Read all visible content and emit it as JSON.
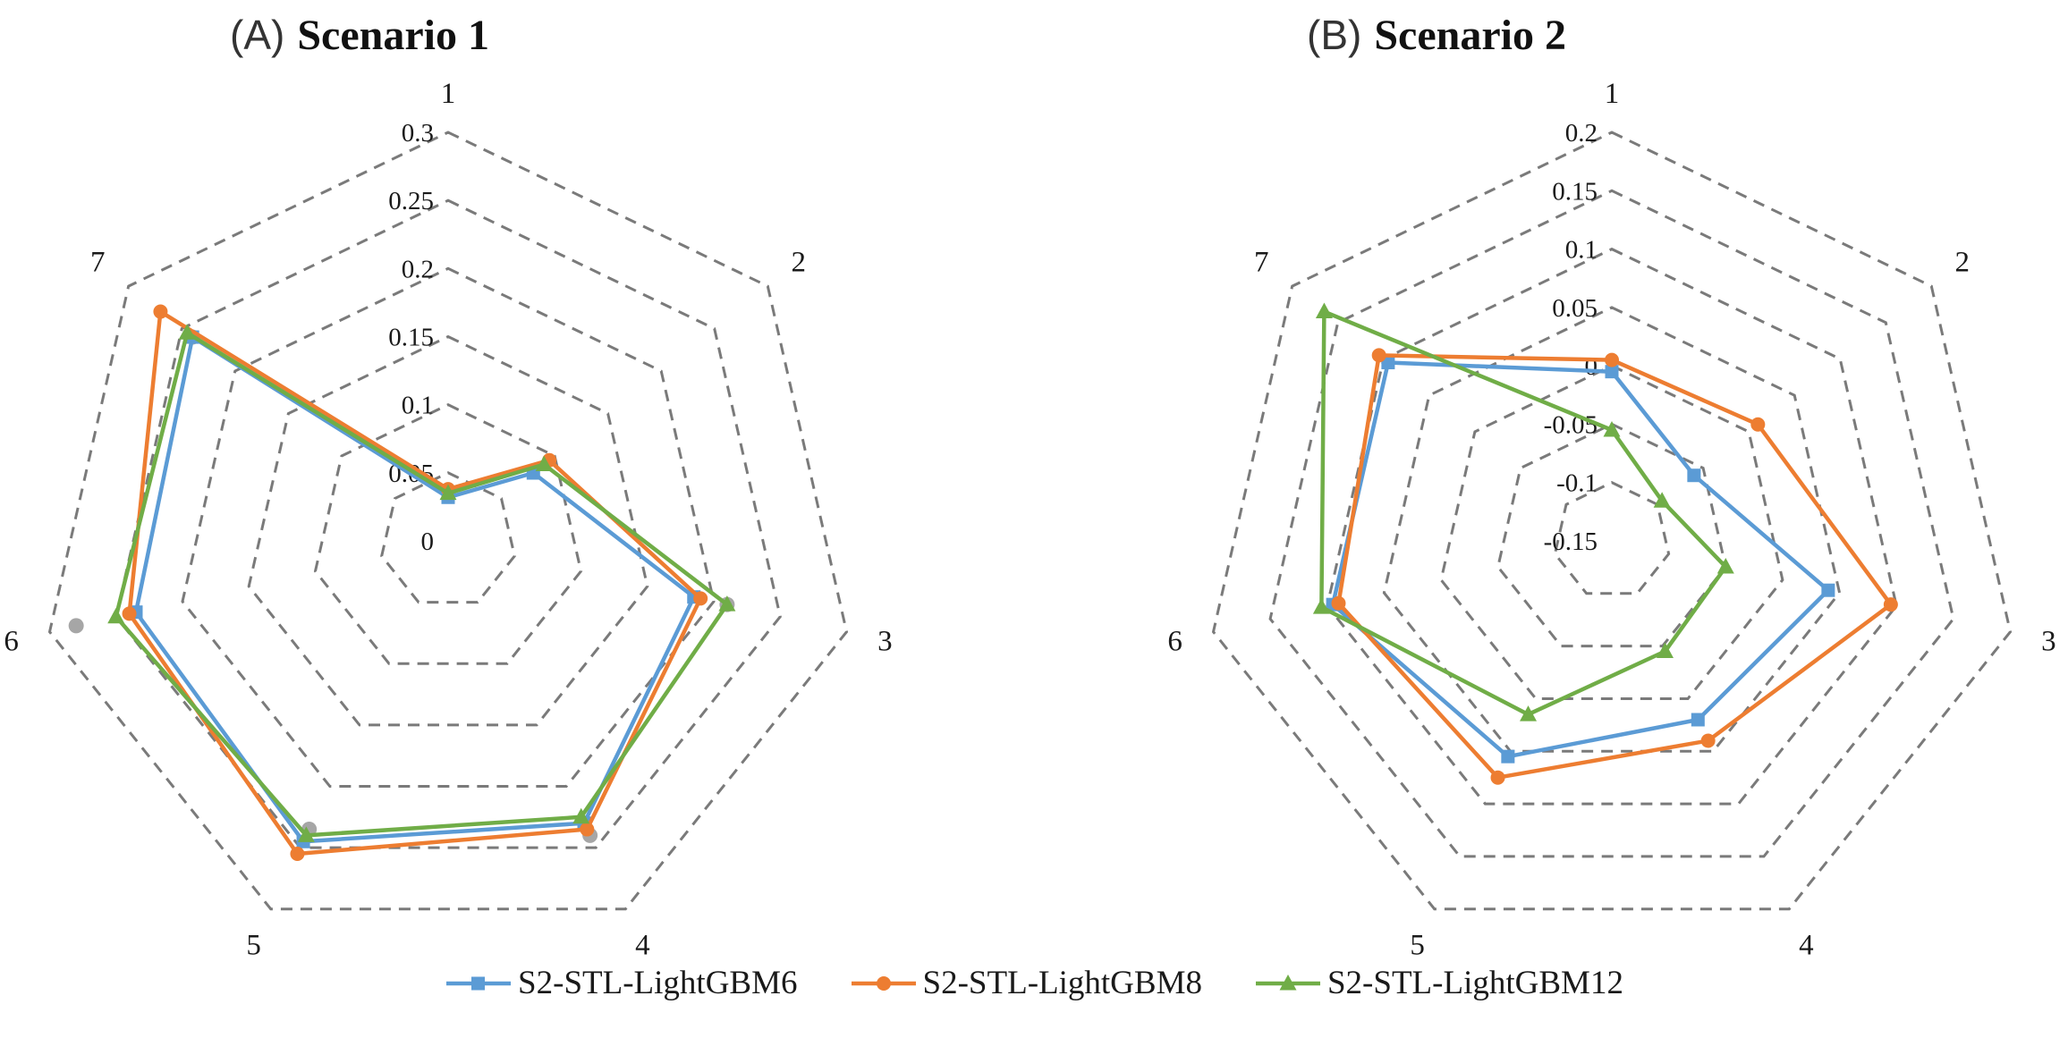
{
  "figure": {
    "background": "#ffffff"
  },
  "style": {
    "grid_color": "#7a7a7a",
    "text_color": "#1a1a1a",
    "extra_marker_color": "#A6A6A6"
  },
  "legend": {
    "items": [
      {
        "label": "S2-STL-LightGBM6",
        "color": "#5B9BD5",
        "marker": "square"
      },
      {
        "label": "S2-STL-LightGBM8",
        "color": "#ED7D31",
        "marker": "circle"
      },
      {
        "label": "S2-STL-LightGBM12",
        "color": "#70AD47",
        "marker": "triangle"
      }
    ]
  },
  "chart_data": [
    {
      "type": "radar",
      "panel_label": "(A)",
      "title": "Scenario 1",
      "categories": [
        "1",
        "2",
        "3",
        "4",
        "5",
        "6",
        "7"
      ],
      "rmin": 0,
      "rmax": 0.3,
      "tick_values": [
        0,
        0.05,
        0.1,
        0.15,
        0.2,
        0.25,
        0.3
      ],
      "tick_labels": [
        "0",
        "0.05",
        "0.1",
        "0.15",
        "0.2",
        "0.25",
        "0.3"
      ],
      "grid": true,
      "legend_position": "bottom",
      "series": [
        {
          "name": "S2-STL-LightGBM6",
          "color": "#5B9BD5",
          "marker": "square",
          "values": [
            0.032,
            0.08,
            0.185,
            0.23,
            0.245,
            0.235,
            0.24
          ]
        },
        {
          "name": "S2-STL-LightGBM8",
          "color": "#ED7D31",
          "marker": "circle",
          "values": [
            0.038,
            0.095,
            0.19,
            0.235,
            0.255,
            0.24,
            0.27
          ]
        },
        {
          "name": "S2-STL-LightGBM12",
          "color": "#70AD47",
          "marker": "triangle",
          "values": [
            0.035,
            0.09,
            0.21,
            0.225,
            0.24,
            0.25,
            0.245
          ]
        }
      ],
      "extra_markers": [
        {
          "category": "1",
          "value": 0.036
        },
        {
          "category": "3",
          "value": 0.21
        },
        {
          "category": "4",
          "value": 0.24
        },
        {
          "category": "5",
          "value": 0.235
        },
        {
          "category": "6",
          "value": 0.28
        },
        {
          "category": "7",
          "value": 0.24
        }
      ]
    },
    {
      "type": "radar",
      "panel_label": "(B)",
      "title": "Scenario 2",
      "categories": [
        "1",
        "2",
        "3",
        "4",
        "5",
        "6",
        "7"
      ],
      "rmin": -0.15,
      "rmax": 0.2,
      "tick_values": [
        -0.15,
        -0.1,
        -0.05,
        0,
        0.05,
        0.1,
        0.15,
        0.2
      ],
      "tick_labels": [
        "-0.15",
        "-0.1",
        "-0.05",
        "0",
        "0.05",
        "0.1",
        "0.15",
        "0.2"
      ],
      "grid": true,
      "legend_position": "bottom",
      "series": [
        {
          "name": "S2-STL-LightGBM6",
          "color": "#5B9BD5",
          "marker": "square",
          "values": [
            -0.005,
            -0.06,
            0.04,
            0.02,
            0.055,
            0.095,
            0.095
          ]
        },
        {
          "name": "S2-STL-LightGBM8",
          "color": "#ED7D31",
          "marker": "circle",
          "values": [
            0.005,
            0.01,
            0.095,
            0.04,
            0.075,
            0.09,
            0.105
          ]
        },
        {
          "name": "S2-STL-LightGBM12",
          "color": "#70AD47",
          "marker": "triangle",
          "values": [
            -0.055,
            -0.095,
            -0.05,
            -0.045,
            0.015,
            0.105,
            0.165
          ]
        }
      ],
      "extra_markers": []
    }
  ]
}
